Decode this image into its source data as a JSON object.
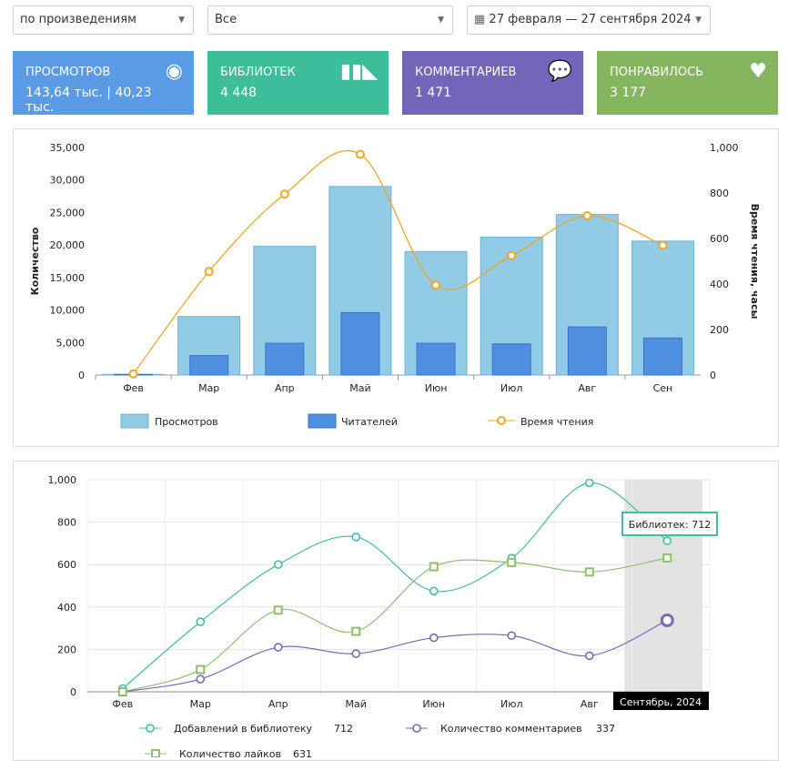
{
  "filters": {
    "mode": "по произведениям",
    "scope": "Все",
    "date_range": "27 февраля — 27 сентября 2024"
  },
  "cards": [
    {
      "title": "ПРОСМОТРОВ",
      "value": "143,64 тыс. | 40,23 тыс.",
      "icon": "eye-icon",
      "color": "#5b9be6"
    },
    {
      "title": "БИБЛИОТЕК",
      "value": "4 448",
      "icon": "books-icon",
      "color": "#3dbd9a"
    },
    {
      "title": "КОММЕНТАРИЕВ",
      "value": "1 471",
      "icon": "comments-icon",
      "color": "#7465bb"
    },
    {
      "title": "ПОНРАВИЛОСЬ",
      "value": "3 177",
      "icon": "heart-icon",
      "color": "#86b560"
    }
  ],
  "chart_data": [
    {
      "type": "bar",
      "categories": [
        "Фев",
        "Мар",
        "Апр",
        "Май",
        "Июн",
        "Июл",
        "Авг",
        "Сен"
      ],
      "ylabel": "Количество",
      "y2label": "Время чтения, часы",
      "ylim": [
        0,
        35000
      ],
      "y2lim": [
        0,
        1000
      ],
      "yticks": [
        "0",
        "5,000",
        "10,000",
        "15,000",
        "20,000",
        "25,000",
        "30,000",
        "35,000"
      ],
      "y2ticks": [
        "0",
        "200",
        "400",
        "600",
        "800",
        "1,000"
      ],
      "series": [
        {
          "name": "Просмотров",
          "type": "bar",
          "color": "#92cbe6",
          "values": [
            100,
            9000,
            19800,
            29000,
            19000,
            21200,
            24700,
            20600
          ]
        },
        {
          "name": "Читателей",
          "type": "bar",
          "color": "#4f8fe0",
          "values": [
            100,
            3000,
            4900,
            9600,
            4900,
            4800,
            7400,
            5700
          ]
        },
        {
          "name": "Время чтения",
          "type": "line",
          "axis": "y2",
          "color": "#f0a623",
          "values": [
            5,
            455,
            795,
            970,
            395,
            525,
            700,
            570
          ]
        }
      ],
      "legend": "bottom"
    },
    {
      "type": "line",
      "categories": [
        "Фев",
        "Мар",
        "Апр",
        "Май",
        "Июн",
        "Июл",
        "Авг",
        "Сентябрь, 2024"
      ],
      "ylim": [
        0,
        1000
      ],
      "yticks": [
        "0",
        "200",
        "400",
        "600",
        "800",
        "1,000"
      ],
      "highlighted_category": "Сентябрь, 2024",
      "tooltip": "Библиотек: 712",
      "series": [
        {
          "name": "Добавлений в библиотеку",
          "current": "712",
          "color": "#3fbf9c",
          "marker": "circle",
          "values": [
            15,
            330,
            600,
            730,
            475,
            630,
            985,
            712
          ]
        },
        {
          "name": "Количество комментариев",
          "current": "337",
          "color": "#7a67b8",
          "marker": "circle",
          "values": [
            0,
            60,
            210,
            180,
            255,
            265,
            170,
            337
          ]
        },
        {
          "name": "Количество лайков",
          "current": "631",
          "color": "#8dbf6e",
          "marker": "square",
          "values": [
            0,
            105,
            385,
            285,
            590,
            610,
            565,
            631
          ]
        }
      ],
      "legend": "bottom"
    }
  ]
}
